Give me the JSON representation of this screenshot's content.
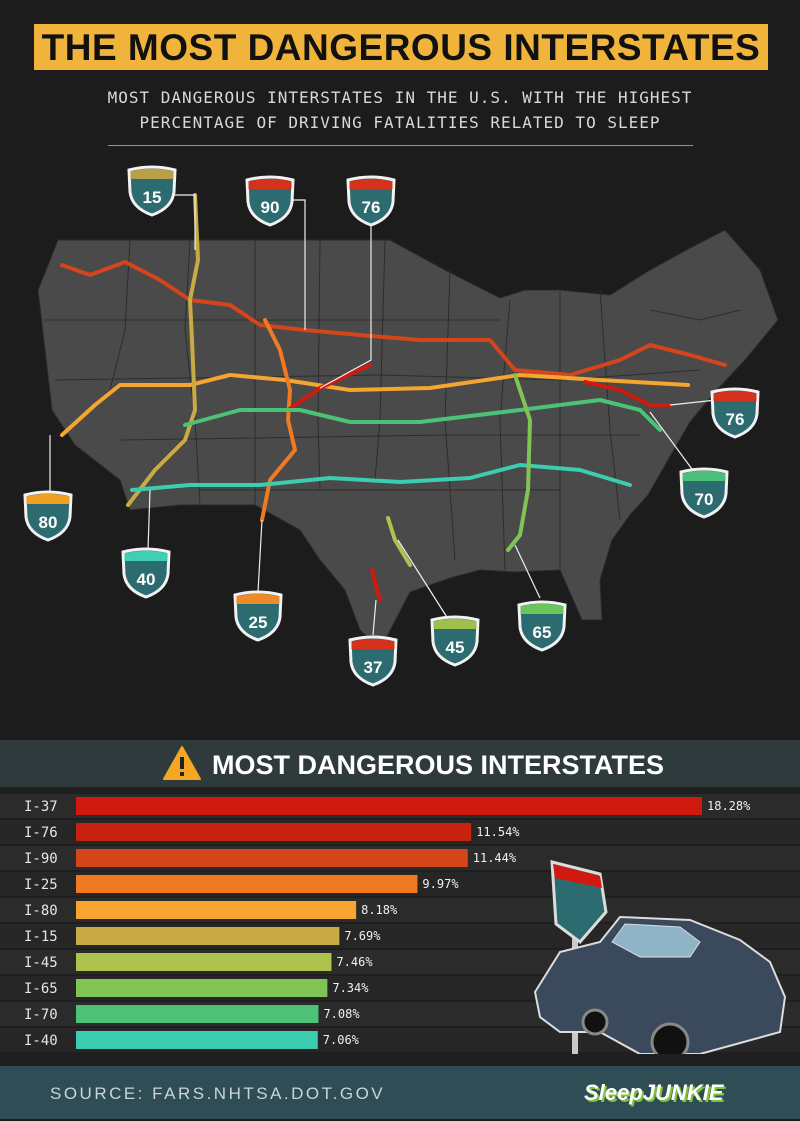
{
  "header": {
    "title": "THE MOST DANGEROUS INTERSTATES",
    "subtitle_line1": "MOST DANGEROUS INTERSTATES IN THE U.S. WITH THE HIGHEST",
    "subtitle_line2": "PERCENTAGE OF DRIVING FATALITIES RELATED TO SLEEP"
  },
  "map": {
    "shields": [
      {
        "label": "15",
        "cap_color": "#b9a046"
      },
      {
        "label": "90",
        "cap_color": "#d4321c"
      },
      {
        "label": "76",
        "cap_color": "#d4321c"
      },
      {
        "label": "80",
        "cap_color": "#f0a025"
      },
      {
        "label": "40",
        "cap_color": "#3fcfb4"
      },
      {
        "label": "25",
        "cap_color": "#ef8a2a"
      },
      {
        "label": "37",
        "cap_color": "#d4321c"
      },
      {
        "label": "45",
        "cap_color": "#9fc04a"
      },
      {
        "label": "65",
        "cap_color": "#6bc45c"
      },
      {
        "label": "70",
        "cap_color": "#4cc07a"
      },
      {
        "label": "76",
        "cap_color": "#d4321c"
      }
    ]
  },
  "section": {
    "title": "MOST DANGEROUS INTERSTATES",
    "icon": "warning-icon"
  },
  "chart_data": {
    "type": "bar",
    "orientation": "horizontal",
    "title": "MOST DANGEROUS INTERSTATES",
    "categories": [
      "I-37",
      "I-76",
      "I-90",
      "I-25",
      "I-80",
      "I-15",
      "I-45",
      "I-65",
      "I-70",
      "I-40"
    ],
    "values": [
      18.28,
      11.54,
      11.44,
      9.97,
      8.18,
      7.69,
      7.46,
      7.34,
      7.08,
      7.06
    ],
    "labels": [
      "18.28%",
      "11.54%",
      "11.44%",
      "9.97%",
      "8.18%",
      "7.69%",
      "7.46%",
      "7.34%",
      "7.08%",
      "7.06%"
    ],
    "colors": [
      "#d01a10",
      "#c6220f",
      "#d4451c",
      "#ef7a22",
      "#f5a530",
      "#c9ab45",
      "#aec24c",
      "#7fc455",
      "#4dc277",
      "#3ccdb0"
    ],
    "unit": "%",
    "xlim": [
      0,
      18.28
    ]
  },
  "footer": {
    "source": "SOURCE: FARS.NHTSA.DOT.GOV",
    "logo": "SleepJUNKIE"
  }
}
